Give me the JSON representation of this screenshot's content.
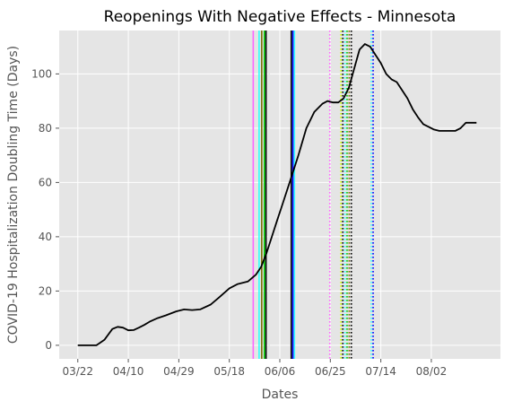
{
  "chart_data": {
    "type": "line",
    "title": "Reopenings With Negative Effects - Minnesota",
    "xlabel": "Dates",
    "ylabel": "COVID-19 Hospitalization Doubling Time (Days)",
    "x_ticks": [
      "03/22",
      "04/10",
      "04/29",
      "05/18",
      "06/06",
      "06/25",
      "07/14",
      "08/02"
    ],
    "x_tick_offsets": [
      0,
      19,
      38,
      57,
      76,
      95,
      114,
      133
    ],
    "xlim_days": [
      -7,
      159
    ],
    "y_ticks": [
      0,
      20,
      40,
      60,
      80,
      100
    ],
    "ylim": [
      -5,
      116
    ],
    "grid": true,
    "background": "#e5e5e5",
    "line_color": "#000000",
    "series": [
      {
        "x": [
          0,
          3,
          7,
          10,
          13,
          15,
          17,
          19,
          21,
          23,
          25,
          27,
          30,
          33,
          37,
          40,
          43,
          46,
          50,
          53,
          57,
          60,
          64,
          67,
          69,
          71,
          73,
          75,
          77,
          80,
          83,
          86,
          89,
          92,
          94,
          96,
          98,
          100,
          102,
          104,
          106,
          108,
          110,
          112,
          114,
          116,
          118,
          120,
          122,
          124,
          126,
          128,
          130,
          132,
          134,
          136,
          138,
          140,
          142,
          144,
          146,
          148,
          150
        ],
        "values": [
          0,
          0,
          0,
          2,
          6,
          6.8,
          6.5,
          5.5,
          5.6,
          6.5,
          7.5,
          8.7,
          10,
          11,
          12.5,
          13.2,
          13,
          13.2,
          15,
          17.5,
          21,
          22.5,
          23.5,
          26,
          29,
          34,
          40,
          46,
          52,
          61,
          70,
          80,
          86,
          89,
          90,
          89.5,
          89.5,
          91,
          95,
          102,
          109,
          111,
          110,
          107,
          104,
          100,
          98,
          97,
          94,
          91,
          87,
          84,
          81.5,
          80.5,
          79.5,
          79,
          79,
          79,
          79,
          80,
          82,
          82,
          82
        ]
      }
    ],
    "vlines": [
      {
        "day": 66.0,
        "color": "#ff66ff",
        "style": "solid"
      },
      {
        "day": 68.2,
        "color": "#33ffff",
        "style": "solid"
      },
      {
        "day": 69.2,
        "color": "#7a6a00",
        "style": "solid"
      },
      {
        "day": 70.2,
        "color": "#00cc00",
        "style": "solid"
      },
      {
        "day": 70.8,
        "color": "#000000",
        "style": "solid"
      },
      {
        "day": 72.0,
        "color": "#e5e5e5",
        "style": "solid"
      },
      {
        "day": 80.3,
        "color": "#000000",
        "style": "solid"
      },
      {
        "day": 80.9,
        "color": "#0000ff",
        "style": "solid"
      },
      {
        "day": 81.5,
        "color": "#33ffff",
        "style": "solid"
      },
      {
        "day": 94.8,
        "color": "#ff66ff",
        "style": "dotted"
      },
      {
        "day": 99.0,
        "color": "#ccff00",
        "style": "dotted"
      },
      {
        "day": 99.7,
        "color": "#000000",
        "style": "dotted"
      },
      {
        "day": 100.5,
        "color": "#33ffff",
        "style": "dotted"
      },
      {
        "day": 101.3,
        "color": "#00cc00",
        "style": "dotted"
      },
      {
        "day": 102.1,
        "color": "#7a6a00",
        "style": "dotted"
      },
      {
        "day": 102.9,
        "color": "#000000",
        "style": "dotted"
      },
      {
        "day": 110.4,
        "color": "#33ffff",
        "style": "dotted"
      },
      {
        "day": 111.1,
        "color": "#0000ff",
        "style": "dotted"
      }
    ]
  }
}
